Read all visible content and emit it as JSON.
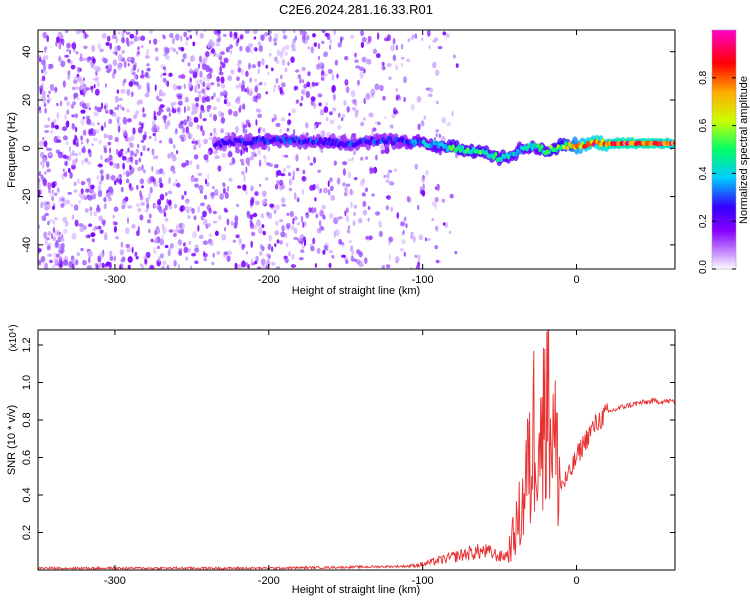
{
  "figure": {
    "title": "C2E6.2024.281.16.33.R01"
  },
  "chart_data": [
    {
      "type": "heatmap",
      "title": "C2E6.2024.281.16.33.R01",
      "xlabel": "Height of straight line (km)",
      "ylabel": "Frequency (Hz)",
      "xlim": [
        -350,
        64
      ],
      "ylim": [
        -50,
        49
      ],
      "x_ticks": [
        -300,
        -200,
        -100,
        0
      ],
      "x_tick_labels": [
        "-300",
        "-200",
        "-100",
        "0"
      ],
      "y_ticks": [
        -40,
        -20,
        0,
        20,
        40
      ],
      "y_tick_labels": [
        "-40",
        "-20",
        "0",
        "20",
        "40"
      ],
      "colorbar": {
        "label": "Normalized spectral amplitude",
        "range": [
          0,
          1
        ],
        "ticks": [
          0.0,
          0.2,
          0.4,
          0.6,
          0.8
        ],
        "tick_labels": [
          "0.0",
          "0.2",
          "0.4",
          "0.6",
          "0.8"
        ],
        "colormap": [
          "#ffffff",
          "#cc99ff",
          "#8800ff",
          "#3300ff",
          "#00ccff",
          "#00ff66",
          "#ccff00",
          "#ffaa00",
          "#ff0000",
          "#ff00cc"
        ]
      },
      "noise_region": {
        "x": [
          -350,
          -97
        ],
        "y": [
          -50,
          49
        ],
        "level": "low",
        "note_colors": [
          "#cfa8ff",
          "#9a55ff",
          "#7a00ff"
        ]
      },
      "ridge": {
        "x": [
          -235,
          -210,
          -190,
          -170,
          -150,
          -130,
          -115,
          -100,
          -90,
          -80,
          -70,
          -60,
          -50,
          -40,
          -35,
          -30,
          -25,
          -20,
          -10,
          0,
          10,
          30,
          50,
          64
        ],
        "y": [
          2,
          3,
          3,
          3,
          2,
          3,
          3,
          2,
          1,
          0,
          -1,
          -2,
          -4,
          -2,
          0,
          1,
          0,
          -1,
          1,
          1,
          2,
          2,
          2,
          2
        ],
        "amplitude": [
          0.3,
          0.35,
          0.35,
          0.35,
          0.35,
          0.35,
          0.35,
          0.45,
          0.5,
          0.55,
          0.55,
          0.55,
          0.5,
          0.5,
          0.45,
          0.5,
          0.5,
          0.55,
          0.6,
          0.75,
          0.85,
          0.9,
          0.9,
          0.85
        ]
      }
    },
    {
      "type": "line",
      "title": "",
      "xlabel": "Height of straight line (km)",
      "ylabel": "SNR (10 * v/v)",
      "y_multiplier": "(x10⁴)",
      "xlim": [
        -350,
        64
      ],
      "ylim": [
        0,
        1.28
      ],
      "x_ticks": [
        -300,
        -200,
        -100,
        0
      ],
      "x_tick_labels": [
        "-300",
        "-200",
        "-100",
        "0"
      ],
      "y_ticks": [
        0.2,
        0.4,
        0.6,
        0.8,
        1.0,
        1.2
      ],
      "y_tick_labels": [
        "0.2",
        "0.4",
        "0.6",
        "0.8",
        "1.0",
        "1.2"
      ],
      "line_color": "#e83030",
      "series": [
        {
          "x": [
            -350,
            -300,
            -250,
            -200,
            -150,
            -110,
            -100,
            -90,
            -80,
            -70,
            -60,
            -55,
            -50,
            -45,
            -40,
            -35,
            -32,
            -30,
            -28,
            -25,
            -22,
            -20,
            -18,
            -15,
            -12,
            -10,
            -5,
            0,
            5,
            10,
            15,
            20,
            30,
            40,
            50,
            64
          ],
          "y": [
            0.01,
            0.01,
            0.01,
            0.01,
            0.015,
            0.02,
            0.03,
            0.05,
            0.07,
            0.09,
            0.1,
            0.09,
            0.07,
            0.08,
            0.2,
            0.35,
            0.55,
            0.5,
            0.75,
            0.9,
            0.6,
            1.27,
            0.95,
            0.7,
            0.55,
            0.45,
            0.5,
            0.6,
            0.68,
            0.75,
            0.8,
            0.84,
            0.87,
            0.89,
            0.9,
            0.9
          ]
        }
      ]
    }
  ]
}
